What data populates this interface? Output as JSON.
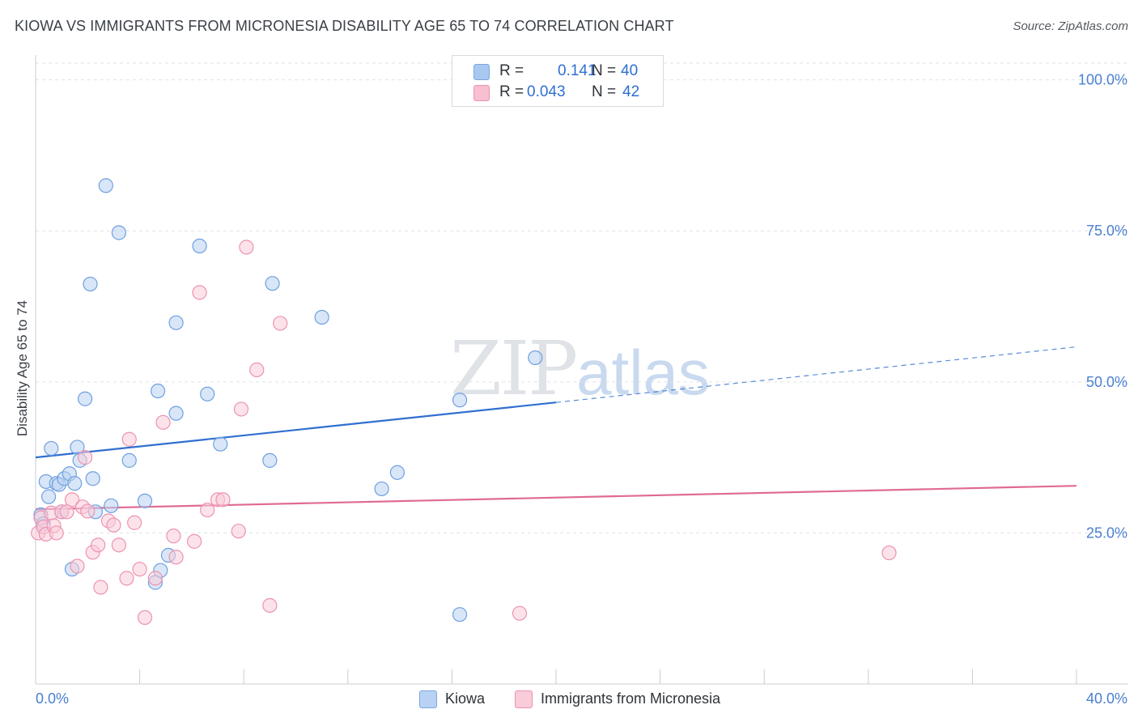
{
  "header": {
    "title": "KIOWA VS IMMIGRANTS FROM MICRONESIA DISABILITY AGE 65 TO 74 CORRELATION CHART",
    "source": "Source: ZipAtlas.com"
  },
  "watermark": {
    "zip": "ZIP",
    "atlas": "atlas"
  },
  "legend": {
    "series": [
      {
        "r_label": "R =",
        "r_value": "0.141",
        "n_label": "N =",
        "n_value": "40",
        "color": "#a9c8f0",
        "border": "#7aa7e0"
      },
      {
        "r_label": "R =",
        "r_value": "0.043",
        "n_label": "N =",
        "n_value": "42",
        "color": "#f7bfd0",
        "border": "#ec93b0"
      }
    ]
  },
  "bottom_legend": [
    {
      "label": "Kiowa",
      "color": "#b9d2f3",
      "border": "#7aa7e0"
    },
    {
      "label": "Immigrants from Micronesia",
      "color": "#f9ccd9",
      "border": "#ec93b0"
    }
  ],
  "chart_data": {
    "type": "scatter",
    "ylabel": "Disability Age 65 to 74",
    "xlim": [
      0,
      40
    ],
    "ylim": [
      0,
      102.5
    ],
    "x_tick_labels": [
      {
        "value": 0,
        "label": "0.0%"
      },
      {
        "value": 40,
        "label": "40.0%"
      }
    ],
    "y_tick_labels": [
      {
        "value": 25,
        "label": "25.0%"
      },
      {
        "value": 50,
        "label": "50.0%"
      },
      {
        "value": 75,
        "label": "75.0%"
      },
      {
        "value": 100,
        "label": "100.0%"
      }
    ],
    "x_minor_ticks": [
      0,
      4,
      8,
      12,
      16,
      20,
      24,
      28,
      32,
      36,
      40
    ],
    "grid": true,
    "series": [
      {
        "name": "Kiowa",
        "color": "#6ea0e0",
        "fill": "#b9d2f3",
        "trend": {
          "x": [
            0,
            20
          ],
          "y": [
            37.5,
            46.6
          ],
          "dashed_to": [
            40,
            55.8
          ],
          "color": "#2f6fd0"
        },
        "points": [
          [
            0.2,
            28.0
          ],
          [
            0.3,
            26.5
          ],
          [
            0.4,
            33.5
          ],
          [
            0.5,
            31.0
          ],
          [
            0.6,
            39.0
          ],
          [
            0.8,
            33.2
          ],
          [
            0.9,
            33.0
          ],
          [
            1.0,
            28.5
          ],
          [
            1.1,
            34.0
          ],
          [
            1.3,
            34.8
          ],
          [
            1.4,
            19.0
          ],
          [
            1.5,
            33.2
          ],
          [
            1.6,
            39.2
          ],
          [
            1.7,
            37.0
          ],
          [
            1.9,
            47.2
          ],
          [
            2.2,
            34.0
          ],
          [
            2.3,
            28.5
          ],
          [
            2.7,
            82.5
          ],
          [
            2.9,
            29.5
          ],
          [
            3.2,
            74.7
          ],
          [
            3.6,
            37.0
          ],
          [
            4.2,
            30.3
          ],
          [
            4.6,
            16.8
          ],
          [
            4.7,
            48.5
          ],
          [
            4.8,
            18.8
          ],
          [
            5.1,
            21.3
          ],
          [
            5.4,
            44.8
          ],
          [
            5.4,
            59.8
          ],
          [
            6.3,
            72.5
          ],
          [
            6.6,
            48.0
          ],
          [
            7.1,
            39.7
          ],
          [
            9.0,
            37.0
          ],
          [
            9.1,
            66.3
          ],
          [
            11.0,
            60.7
          ],
          [
            13.3,
            32.3
          ],
          [
            13.9,
            35.0
          ],
          [
            2.1,
            66.2
          ],
          [
            16.3,
            47.0
          ],
          [
            16.3,
            11.5
          ],
          [
            19.2,
            54.0
          ]
        ]
      },
      {
        "name": "Immigrants from Micronesia",
        "color": "#ec93b0",
        "fill": "#f9ccd9",
        "trend": {
          "x": [
            0,
            40
          ],
          "y": [
            28.9,
            32.8
          ],
          "color": "#e06a94"
        },
        "points": [
          [
            0.1,
            25.0
          ],
          [
            0.2,
            27.5
          ],
          [
            0.3,
            26.0
          ],
          [
            0.4,
            24.8
          ],
          [
            0.6,
            28.3
          ],
          [
            0.7,
            26.2
          ],
          [
            0.8,
            25.0
          ],
          [
            1.0,
            28.5
          ],
          [
            1.2,
            28.5
          ],
          [
            1.4,
            30.5
          ],
          [
            1.6,
            19.5
          ],
          [
            1.8,
            29.3
          ],
          [
            1.9,
            37.5
          ],
          [
            2.0,
            28.6
          ],
          [
            2.2,
            21.8
          ],
          [
            2.4,
            23.0
          ],
          [
            2.5,
            16.0
          ],
          [
            2.8,
            27.0
          ],
          [
            3.0,
            26.3
          ],
          [
            3.2,
            23.0
          ],
          [
            3.5,
            17.5
          ],
          [
            3.6,
            40.5
          ],
          [
            3.8,
            26.7
          ],
          [
            4.0,
            19.0
          ],
          [
            4.2,
            11.0
          ],
          [
            4.6,
            17.5
          ],
          [
            4.9,
            43.3
          ],
          [
            5.3,
            24.5
          ],
          [
            5.4,
            21.0
          ],
          [
            6.1,
            23.6
          ],
          [
            6.3,
            64.8
          ],
          [
            6.6,
            28.8
          ],
          [
            7.0,
            30.5
          ],
          [
            7.2,
            30.5
          ],
          [
            7.8,
            25.3
          ],
          [
            7.9,
            45.5
          ],
          [
            8.1,
            72.3
          ],
          [
            8.5,
            52.0
          ],
          [
            9.0,
            13.0
          ],
          [
            9.4,
            59.7
          ],
          [
            18.6,
            11.7
          ],
          [
            32.8,
            21.7
          ]
        ]
      }
    ]
  }
}
